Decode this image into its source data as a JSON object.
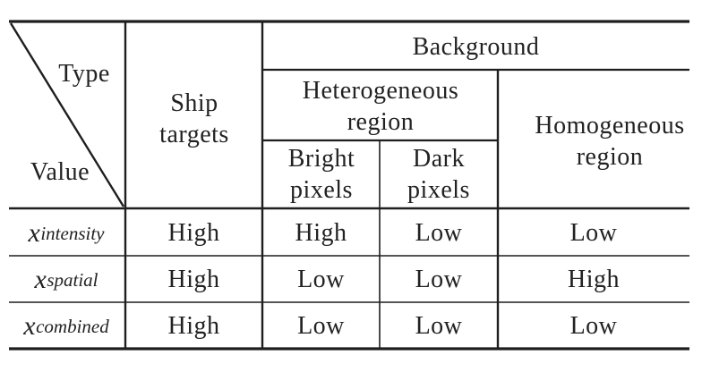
{
  "header": {
    "corner_type": "Type",
    "corner_value": "Value",
    "ship_targets": "Ship targets",
    "background": "Background",
    "heterogeneous_region": "Heterogeneous region",
    "homogeneous_region": "Homogeneous region",
    "bright_pixels": "Bright pixels",
    "dark_pixels": "Dark pixels"
  },
  "rows": [
    {
      "var": "x",
      "sub": "intensity",
      "ship": "High",
      "bright": "High",
      "dark": "Low",
      "homogeneous": "Low"
    },
    {
      "var": "x",
      "sub": "spatial",
      "ship": "High",
      "bright": "Low",
      "dark": "Low",
      "homogeneous": "High"
    },
    {
      "var": "x",
      "sub": "combined",
      "ship": "High",
      "bright": "Low",
      "dark": "Low",
      "homogeneous": "Low"
    }
  ]
}
